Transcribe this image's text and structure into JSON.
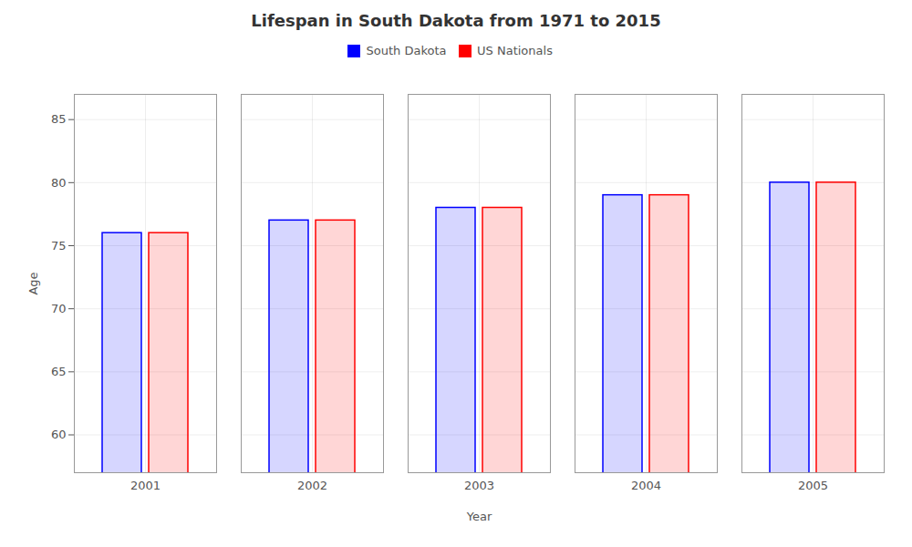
{
  "chart_data": {
    "type": "bar",
    "title": "Lifespan in South Dakota from 1971 to 2015",
    "xlabel": "Year",
    "ylabel": "Age",
    "categories": [
      "2001",
      "2002",
      "2003",
      "2004",
      "2005"
    ],
    "series": [
      {
        "name": "South Dakota",
        "color": "#0000ff",
        "values": [
          76,
          77,
          78,
          79,
          80
        ]
      },
      {
        "name": "US Nationals",
        "color": "#ff0000",
        "values": [
          76,
          77,
          78,
          79,
          80
        ]
      }
    ],
    "ylim": [
      57,
      87
    ],
    "yticks": [
      60,
      65,
      70,
      75,
      80,
      85
    ],
    "grid": true,
    "legend": "upper center"
  }
}
